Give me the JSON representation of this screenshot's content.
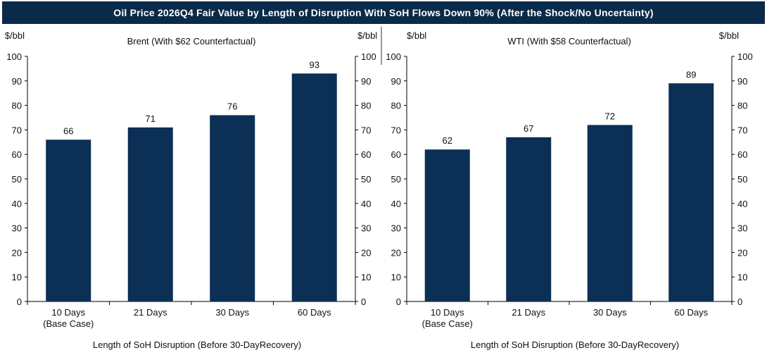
{
  "title": "Oil Price 2026Q4 Fair Value by Length of Disruption With SoH Flows Down 90% (After the Shock/No Uncertainty)",
  "colors": {
    "banner": "#0a2a4a",
    "bar": "#0b2f55",
    "axis": "#000000"
  },
  "chart_data": [
    {
      "type": "bar",
      "title": "Brent (With $62 Counterfactual)",
      "unit_left": "$/bbl",
      "unit_right": "$/bbl",
      "xlabel": "Length of SoH Disruption (Before 30-DayRecovery)",
      "categories": [
        [
          "10 Days",
          "(Base Case)"
        ],
        [
          "21 Days"
        ],
        [
          "30 Days"
        ],
        [
          "60 Days"
        ]
      ],
      "values": [
        66,
        71,
        76,
        93
      ],
      "ylim": [
        0,
        100
      ],
      "yticks": [
        0,
        10,
        20,
        30,
        40,
        50,
        60,
        70,
        80,
        90,
        100
      ],
      "grid": false
    },
    {
      "type": "bar",
      "title": "WTI (With $58 Counterfactual)",
      "unit_left": "$/bbl",
      "unit_right": "$/bbl",
      "xlabel": "Length of SoH Disruption (Before 30-DayRecovery)",
      "categories": [
        [
          "10 Days",
          "(Base Case)"
        ],
        [
          "21 Days"
        ],
        [
          "30 Days"
        ],
        [
          "60 Days"
        ]
      ],
      "values": [
        62,
        67,
        72,
        89
      ],
      "ylim": [
        0,
        100
      ],
      "yticks": [
        0,
        10,
        20,
        30,
        40,
        50,
        60,
        70,
        80,
        90,
        100
      ],
      "grid": false
    }
  ]
}
